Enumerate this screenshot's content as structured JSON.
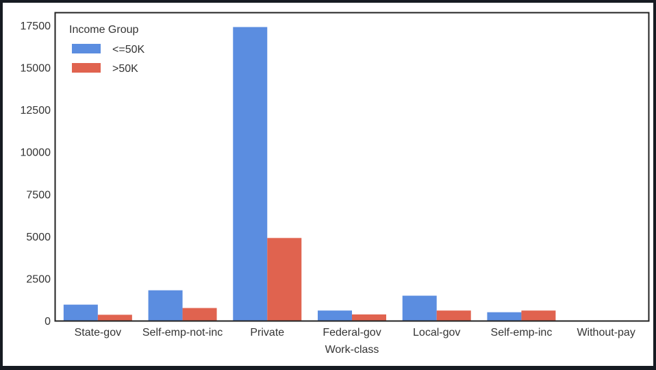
{
  "chart_data": {
    "type": "bar",
    "title": "",
    "xlabel": "Work-class",
    "ylabel": "",
    "categories": [
      "State-gov",
      "Self-emp-not-inc",
      "Private",
      "Federal-gov",
      "Local-gov",
      "Self-emp-inc",
      "Without-pay"
    ],
    "series": [
      {
        "name": "<=50K",
        "color": "#5b8de0",
        "values": [
          950,
          1800,
          17400,
          600,
          1480,
          500,
          0
        ]
      },
      {
        "name": ">50K",
        "color": "#e0634f",
        "values": [
          350,
          750,
          4900,
          370,
          600,
          600,
          0
        ]
      }
    ],
    "yticks": [
      0,
      2500,
      5000,
      7500,
      10000,
      12500,
      15000,
      17500
    ],
    "ylim": [
      0,
      17500
    ],
    "grid": false,
    "legend": {
      "title": "Income Group",
      "position": "top-left"
    }
  }
}
